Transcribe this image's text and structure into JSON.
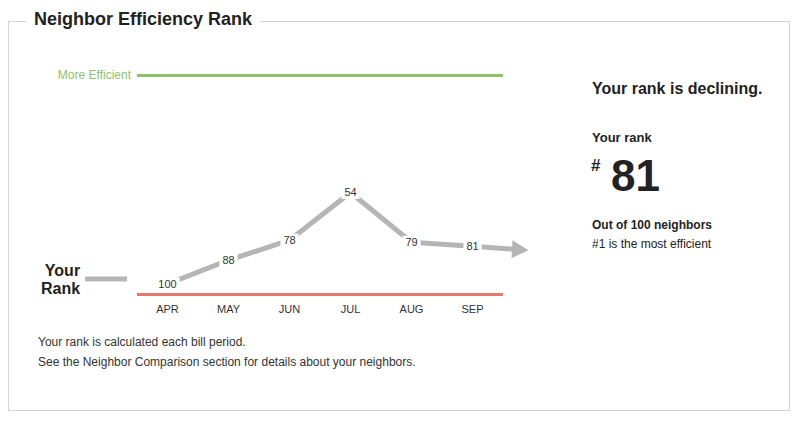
{
  "chart_data": {
    "type": "line",
    "title": "Neighbor Efficiency Rank",
    "categories": [
      "APR",
      "MAY",
      "JUN",
      "JUL",
      "AUG",
      "SEP"
    ],
    "series": [
      {
        "name": "Your Rank",
        "color": "#b5b5b5",
        "values": [
          100,
          88,
          78,
          54,
          79,
          81
        ]
      }
    ],
    "ylim": [
      105,
      -5
    ],
    "yticks": [
      105,
      -5
    ],
    "tick_labels": "x",
    "data_labels": true,
    "line_style": "solid",
    "legend": "left",
    "annotations": [
      {
        "text": "More Efficient",
        "y": -5
      }
    ]
  },
  "side_panel": {
    "headline": "Your rank is declining.",
    "rank_label": "Your rank",
    "rank_prefix": "#",
    "rank": 81,
    "out_of": "Out of 100 neighbors",
    "note": "#1 is the most efficient"
  },
  "footer": [
    "Your rank is calculated each bill period.",
    "See the Neighbor Comparison section for details about your neighbors."
  ]
}
